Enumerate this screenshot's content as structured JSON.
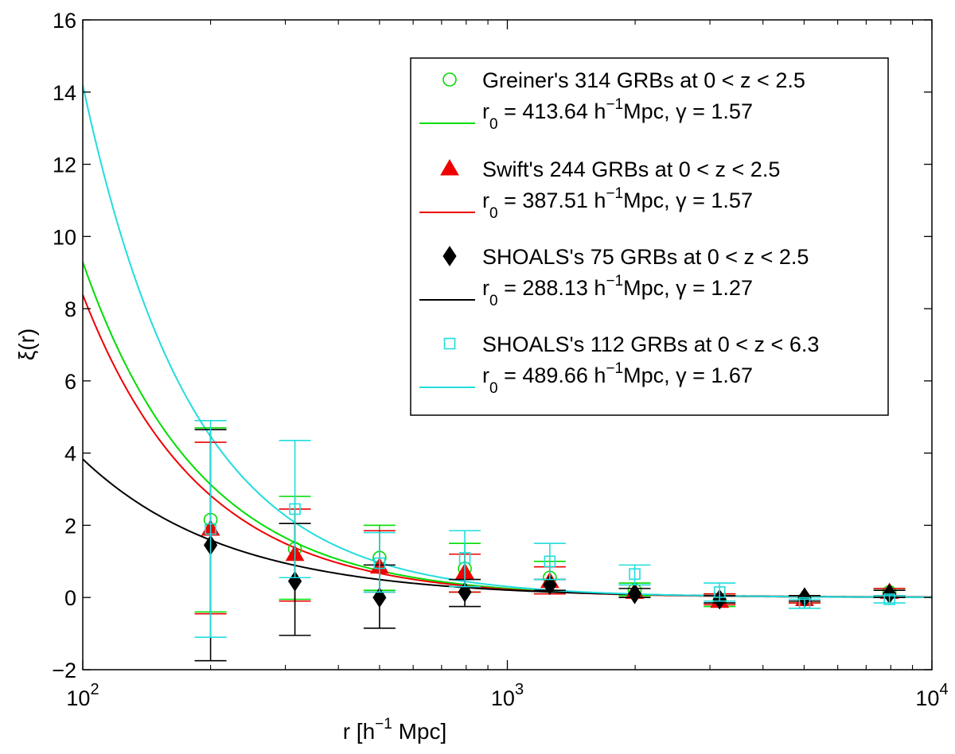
{
  "chart_data": {
    "type": "scatter",
    "title": "",
    "xlabel": {
      "prefix": "r  [h",
      "sup": "−1",
      "suffix": " Mpc]"
    },
    "ylabel": "ξ(r)",
    "xscale": "log",
    "xlim": [
      100,
      10000
    ],
    "ylim": [
      -2,
      16
    ],
    "grid": false,
    "legend_position": "top-right",
    "x_tick_values": [
      100,
      1000,
      10000
    ],
    "x_tick_labels": [
      {
        "base": "10",
        "exp": "2"
      },
      {
        "base": "10",
        "exp": "3"
      },
      {
        "base": "10",
        "exp": "4"
      }
    ],
    "y_ticks": [
      -2,
      0,
      2,
      4,
      6,
      8,
      10,
      12,
      14,
      16
    ],
    "y_tick_labels": [
      "−2",
      "0",
      "2",
      "4",
      "6",
      "8",
      "10",
      "12",
      "14",
      "16"
    ],
    "series": [
      {
        "name": "Greiner's 314 GRBs at 0 < z < 2.5",
        "marker": "circle",
        "color": "#00dd00",
        "fit": {
          "label": {
            "pre": "r",
            "sub": "0",
            "mid": " = 413.64 h",
            "sup": "−1",
            "post": "Mpc, γ = 1.57"
          },
          "r0": 413.64,
          "gamma": 1.57
        },
        "x": [
          200,
          316,
          500,
          794,
          1259,
          1995,
          3162,
          5012,
          7943
        ],
        "y": [
          2.15,
          1.35,
          1.1,
          0.8,
          0.55,
          0.2,
          -0.1,
          -0.05,
          0.15
        ],
        "err_low": [
          -0.4,
          -0.05,
          0.2,
          0.15,
          0.1,
          0.05,
          -0.25,
          -0.15,
          0.05
        ],
        "err_high": [
          4.7,
          2.8,
          2.0,
          1.5,
          1.0,
          0.4,
          0.1,
          0.05,
          0.25
        ]
      },
      {
        "name": "Swift's 244 GRBs at 0 < z < 2.5",
        "marker": "triangle",
        "color": "#ee0000",
        "fit": {
          "label": {
            "pre": "r",
            "sub": "0",
            "mid": " = 387.51 h",
            "sup": "−1",
            "post": "Mpc, γ = 1.57"
          },
          "r0": 387.51,
          "gamma": 1.57
        },
        "x": [
          200,
          316,
          500,
          794,
          1259,
          1995,
          3162,
          5012,
          7943
        ],
        "y": [
          1.9,
          1.2,
          0.85,
          0.7,
          0.45,
          0.15,
          -0.1,
          -0.05,
          0.15
        ],
        "err_low": [
          -0.45,
          -0.1,
          0.15,
          0.15,
          0.1,
          0.0,
          -0.2,
          -0.15,
          0.05
        ],
        "err_high": [
          4.3,
          2.45,
          1.85,
          1.2,
          0.85,
          0.35,
          0.1,
          0.05,
          0.25
        ]
      },
      {
        "name": "SHOALS's 75 GRBs at 0 < z < 2.5",
        "marker": "diamond",
        "color": "#000000",
        "fit": {
          "label": {
            "pre": "r",
            "sub": "0",
            "mid": " = 288.13 h",
            "sup": "−1",
            "post": "Mpc, γ = 1.27"
          },
          "r0": 288.13,
          "gamma": 1.27
        },
        "x": [
          200,
          316,
          500,
          794,
          1259,
          1995,
          3162,
          5012,
          7943
        ],
        "y": [
          1.45,
          0.45,
          0.0,
          0.15,
          0.35,
          0.1,
          -0.05,
          0.0,
          0.1
        ],
        "err_low": [
          -1.75,
          -1.05,
          -0.85,
          -0.25,
          0.2,
          0.0,
          -0.15,
          -0.1,
          0.0
        ],
        "err_high": [
          4.65,
          2.05,
          0.9,
          0.5,
          0.5,
          0.25,
          0.05,
          0.05,
          0.2
        ]
      },
      {
        "name": "SHOALS's 112 GRBs at 0 < z < 6.3",
        "marker": "square",
        "color": "#22dddd",
        "fit": {
          "label": {
            "pre": "r",
            "sub": "0",
            "mid": " = 489.66 h",
            "sup": "−1",
            "post": "Mpc, γ = 1.67"
          },
          "r0": 489.66,
          "gamma": 1.67
        },
        "x": [
          200,
          316,
          500,
          794,
          1259,
          1995,
          3162,
          5012,
          7943
        ],
        "y": [
          1.9,
          2.45,
          0.95,
          1.1,
          1.0,
          0.65,
          0.15,
          -0.15,
          -0.05
        ],
        "err_low": [
          -1.1,
          0.55,
          0.15,
          0.3,
          0.5,
          0.35,
          -0.1,
          -0.3,
          -0.15
        ],
        "err_high": [
          4.9,
          4.35,
          1.8,
          1.85,
          1.5,
          0.9,
          0.4,
          -0.05,
          0.05
        ]
      }
    ]
  }
}
